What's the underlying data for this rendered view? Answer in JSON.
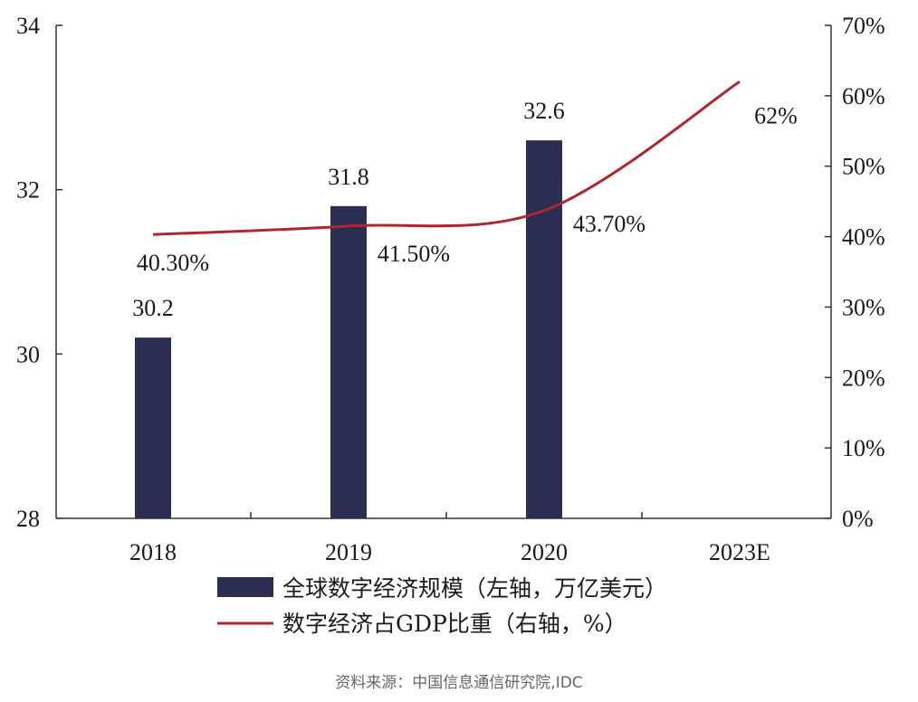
{
  "chart_data": {
    "type": "bar+line",
    "categories": [
      "2018",
      "2019",
      "2020",
      "2023E"
    ],
    "series": [
      {
        "name": "全球数字经济规模（左轴，万亿美元）",
        "type": "bar",
        "axis": "left",
        "values": [
          30.2,
          31.8,
          32.6,
          null
        ],
        "labels": [
          "30.2",
          "31.8",
          "32.6",
          ""
        ],
        "color": "#2b2d52"
      },
      {
        "name": "数字经济占GDP比重（右轴，%）",
        "type": "line",
        "axis": "right",
        "values": [
          40.3,
          41.5,
          43.7,
          62
        ],
        "labels": [
          "40.30%",
          "41.50%",
          "43.70%",
          "62%"
        ],
        "color": "#b0262f"
      }
    ],
    "y_left": {
      "min": 28,
      "max": 34,
      "ticks": [
        "28",
        "30",
        "32",
        "34"
      ]
    },
    "y_right": {
      "min": 0,
      "max": 70,
      "ticks": [
        "0%",
        "10%",
        "20%",
        "30%",
        "40%",
        "50%",
        "60%",
        "70%"
      ]
    },
    "grid": false,
    "legend_position": "bottom",
    "source": "资料来源：中国信息通信研究院,IDC"
  }
}
